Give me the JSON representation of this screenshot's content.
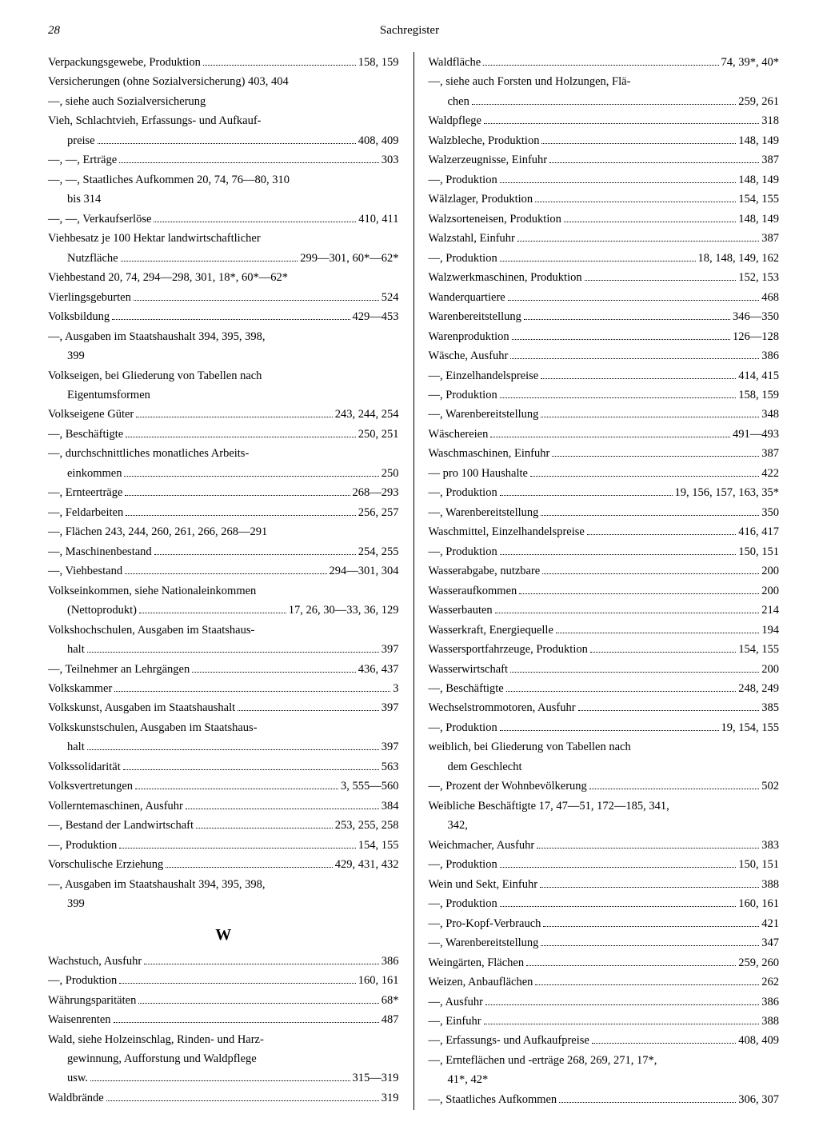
{
  "page_number": "28",
  "header_title": "Sachregister",
  "section_letter": "W",
  "left": [
    {
      "t": "Verpackungsgewebe, Produktion",
      "p": "158, 159"
    },
    {
      "t": "Versicherungen (ohne Sozialversicherung) 403, 404",
      "nodots": true
    },
    {
      "t": "—, siehe auch Sozialversicherung",
      "nodots": true
    },
    {
      "t": "Vieh, Schlachtvieh, Erfassungs- und Aufkauf-",
      "nodots": true
    },
    {
      "t": "preise",
      "p": "408, 409",
      "indent": true
    },
    {
      "t": "—, —, Erträge",
      "p": "303"
    },
    {
      "t": "—, —, Staatliches Aufkommen 20, 74, 76—80, 310",
      "nodots": true
    },
    {
      "t": "bis 314",
      "nodots": true,
      "indent": true
    },
    {
      "t": "—, —, Verkaufserlöse",
      "p": "410, 411"
    },
    {
      "t": "Viehbesatz je 100 Hektar landwirtschaftlicher",
      "nodots": true
    },
    {
      "t": "Nutzfläche",
      "p": "299—301, 60*—62*",
      "indent": true
    },
    {
      "t": "Viehbestand 20, 74, 294—298, 301, 18*, 60*—62*",
      "nodots": true
    },
    {
      "t": "Vierlingsgeburten",
      "p": "524"
    },
    {
      "t": "Volksbildung",
      "p": "429—453"
    },
    {
      "t": "—, Ausgaben im Staatshaushalt 394, 395, 398,",
      "nodots": true
    },
    {
      "t": "399",
      "nodots": true,
      "indent": true
    },
    {
      "t": "Volkseigen, bei Gliederung von Tabellen nach",
      "nodots": true
    },
    {
      "t": "Eigentumsformen",
      "nodots": true,
      "indent": true
    },
    {
      "t": "Volkseigene Güter",
      "p": "243, 244, 254"
    },
    {
      "t": "—, Beschäftigte",
      "p": "250, 251"
    },
    {
      "t": "—, durchschnittliches monatliches Arbeits-",
      "nodots": true
    },
    {
      "t": "einkommen",
      "p": "250",
      "indent": true
    },
    {
      "t": "—, Ernteerträge",
      "p": "268—293"
    },
    {
      "t": "—, Feldarbeiten",
      "p": "256, 257"
    },
    {
      "t": "—, Flächen 243, 244, 260, 261, 266, 268—291",
      "nodots": true
    },
    {
      "t": "—, Maschinenbestand",
      "p": "254, 255"
    },
    {
      "t": "—, Viehbestand",
      "p": "294—301, 304"
    },
    {
      "t": "Volkseinkommen, siehe Nationaleinkommen",
      "nodots": true
    },
    {
      "t": "(Nettoprodukt)",
      "p": "17, 26, 30—33, 36, 129",
      "indent": true
    },
    {
      "t": "Volkshochschulen, Ausgaben im Staatshaus-",
      "nodots": true
    },
    {
      "t": "halt",
      "p": "397",
      "indent": true
    },
    {
      "t": "—, Teilnehmer an Lehrgängen",
      "p": "436, 437"
    },
    {
      "t": "Volkskammer",
      "p": "3"
    },
    {
      "t": "Volkskunst, Ausgaben im Staatshaushalt",
      "p": "397"
    },
    {
      "t": "Volkskunstschulen, Ausgaben im Staatshaus-",
      "nodots": true
    },
    {
      "t": "halt",
      "p": "397",
      "indent": true
    },
    {
      "t": "Volkssolidarität",
      "p": "563"
    },
    {
      "t": "Volksvertretungen",
      "p": "3, 555—560"
    },
    {
      "t": "Vollerntemaschinen, Ausfuhr",
      "p": "384"
    },
    {
      "t": "—, Bestand der Landwirtschaft",
      "p": "253, 255, 258"
    },
    {
      "t": "—, Produktion",
      "p": "154, 155"
    },
    {
      "t": "Vorschulische Erziehung",
      "p": "429, 431, 432"
    },
    {
      "t": "—, Ausgaben im Staatshaushalt 394, 395, 398,",
      "nodots": true
    },
    {
      "t": "399",
      "nodots": true,
      "indent": true
    }
  ],
  "left_w": [
    {
      "t": "Wachstuch, Ausfuhr",
      "p": "386"
    },
    {
      "t": "—, Produktion",
      "p": "160, 161"
    },
    {
      "t": "Währungsparitäten",
      "p": "68*"
    },
    {
      "t": "Waisenrenten",
      "p": "487"
    },
    {
      "t": "Wald, siehe Holzeinschlag, Rinden- und Harz-",
      "nodots": true
    },
    {
      "t": "gewinnung, Aufforstung und Waldpflege",
      "nodots": true,
      "indent": true
    },
    {
      "t": "usw.",
      "p": "315—319",
      "indent": true
    },
    {
      "t": "Waldbrände",
      "p": "319"
    }
  ],
  "right": [
    {
      "t": "Waldfläche",
      "p": "74, 39*, 40*"
    },
    {
      "t": "—, siehe auch Forsten und Holzungen, Flä-",
      "nodots": true
    },
    {
      "t": "chen",
      "p": "259, 261",
      "indent": true
    },
    {
      "t": "Waldpflege",
      "p": "318"
    },
    {
      "t": "Walzbleche, Produktion",
      "p": "148, 149"
    },
    {
      "t": "Walzerzeugnisse, Einfuhr",
      "p": "387"
    },
    {
      "t": "—, Produktion",
      "p": "148, 149"
    },
    {
      "t": "Wälzlager, Produktion",
      "p": "154, 155"
    },
    {
      "t": "Walzsorteneisen, Produktion",
      "p": "148, 149"
    },
    {
      "t": "Walzstahl, Einfuhr",
      "p": "387"
    },
    {
      "t": "—, Produktion",
      "p": "18, 148, 149, 162"
    },
    {
      "t": "Walzwerkmaschinen, Produktion",
      "p": "152, 153"
    },
    {
      "t": "Wanderquartiere",
      "p": "468"
    },
    {
      "t": "Warenbereitstellung",
      "p": "346—350"
    },
    {
      "t": "Warenproduktion",
      "p": "126—128"
    },
    {
      "t": "Wäsche, Ausfuhr",
      "p": "386"
    },
    {
      "t": "—, Einzelhandelspreise",
      "p": "414, 415"
    },
    {
      "t": "—, Produktion",
      "p": "158, 159"
    },
    {
      "t": "—, Warenbereitstellung",
      "p": "348"
    },
    {
      "t": "Wäschereien",
      "p": "491—493"
    },
    {
      "t": "Waschmaschinen, Einfuhr",
      "p": "387"
    },
    {
      "t": "— pro 100 Haushalte",
      "p": "422"
    },
    {
      "t": "—, Produktion",
      "p": "19, 156, 157, 163, 35*"
    },
    {
      "t": "—, Warenbereitstellung",
      "p": "350"
    },
    {
      "t": "Waschmittel, Einzelhandelspreise",
      "p": "416, 417"
    },
    {
      "t": "—, Produktion",
      "p": "150, 151"
    },
    {
      "t": "Wasserabgabe, nutzbare",
      "p": "200"
    },
    {
      "t": "Wasseraufkommen",
      "p": "200"
    },
    {
      "t": "Wasserbauten",
      "p": "214"
    },
    {
      "t": "Wasserkraft, Energiequelle",
      "p": "194"
    },
    {
      "t": "Wassersportfahrzeuge, Produktion",
      "p": "154, 155"
    },
    {
      "t": "Wasserwirtschaft",
      "p": "200"
    },
    {
      "t": "—, Beschäftigte",
      "p": "248, 249"
    },
    {
      "t": "Wechselstrommotoren, Ausfuhr",
      "p": "385"
    },
    {
      "t": "—, Produktion",
      "p": "19, 154, 155"
    },
    {
      "t": "weiblich, bei Gliederung von Tabellen nach",
      "nodots": true
    },
    {
      "t": "dem Geschlecht",
      "nodots": true,
      "indent": true
    },
    {
      "t": "—, Prozent der Wohnbevölkerung",
      "p": "502"
    },
    {
      "t": "Weibliche Beschäftigte 17, 47—51, 172—185, 341,",
      "nodots": true
    },
    {
      "t": "342,",
      "nodots": true,
      "indent": true
    },
    {
      "t": "Weichmacher, Ausfuhr",
      "p": "383"
    },
    {
      "t": "—, Produktion",
      "p": "150, 151"
    },
    {
      "t": "Wein und Sekt, Einfuhr",
      "p": "388"
    },
    {
      "t": "—, Produktion",
      "p": "160, 161"
    },
    {
      "t": "—, Pro-Kopf-Verbrauch",
      "p": "421"
    },
    {
      "t": "—, Warenbereitstellung",
      "p": "347"
    },
    {
      "t": "Weingärten, Flächen",
      "p": "259, 260"
    },
    {
      "t": "Weizen, Anbauflächen",
      "p": "262"
    },
    {
      "t": "—, Ausfuhr",
      "p": "386"
    },
    {
      "t": "—, Einfuhr",
      "p": "388"
    },
    {
      "t": "—, Erfassungs- und Aufkaufpreise",
      "p": "408, 409"
    },
    {
      "t": "—, Ernteflächen und -erträge 268, 269, 271, 17*,",
      "nodots": true
    },
    {
      "t": "41*, 42*",
      "nodots": true,
      "indent": true
    },
    {
      "t": "—, Staatliches Aufkommen",
      "p": "306, 307"
    }
  ]
}
